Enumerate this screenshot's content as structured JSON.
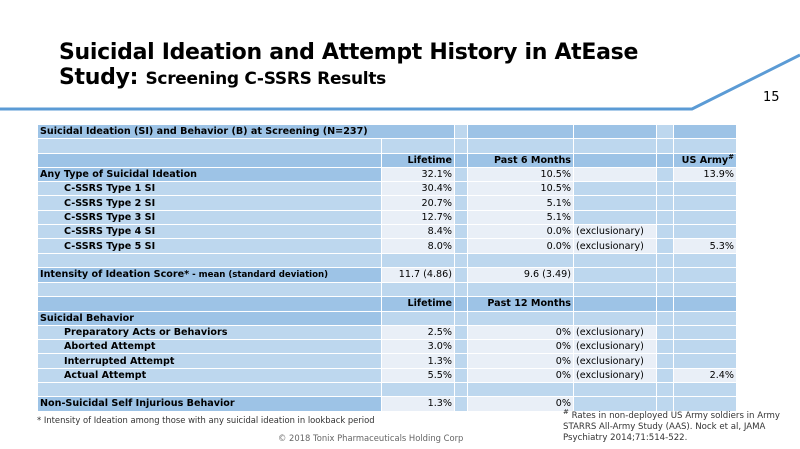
{
  "slide": {
    "title_main": "Suicidal Ideation and Attempt History in AtEase",
    "title_line2_bold": "Study:",
    "title_line2_sub": "Screening C-SSRS Results",
    "page_number": "15",
    "accent_color": "#5b9bd5"
  },
  "table": {
    "caption": "Suicidal Ideation (SI) and Behavior (B) at Screening (N=237)",
    "section1_headers": {
      "lifetime": "Lifetime",
      "past": "Past 6 Months",
      "army": "US Army",
      "army_mark": "#"
    },
    "ideation_rows": [
      {
        "label": "Any Type of Suicidal Ideation",
        "lifetime": "32.1%",
        "past": "10.5%",
        "note": "",
        "army": "13.9%"
      },
      {
        "label": "C-SSRS Type 1 SI",
        "lifetime": "30.4%",
        "past": "10.5%",
        "note": "",
        "army": ""
      },
      {
        "label": "C-SSRS Type 2 SI",
        "lifetime": "20.7%",
        "past": "5.1%",
        "note": "",
        "army": ""
      },
      {
        "label": "C-SSRS Type 3 SI",
        "lifetime": "12.7%",
        "past": "5.1%",
        "note": "",
        "army": ""
      },
      {
        "label": "C-SSRS Type 4 SI",
        "lifetime": "8.4%",
        "past": "0.0%",
        "note": "(exclusionary)",
        "army": ""
      },
      {
        "label": "C-SSRS Type 5 SI",
        "lifetime": "8.0%",
        "past": "0.0%",
        "note": "(exclusionary)",
        "army": "5.3%"
      }
    ],
    "intensity": {
      "label": "Intensity of Ideation Score*",
      "label_small": " - mean (standard deviation)",
      "lifetime": "11.7 (4.86)",
      "past": "9.6 (3.49)"
    },
    "section2_headers": {
      "lifetime": "Lifetime",
      "past": "Past 12 Months"
    },
    "behavior_title": "Suicidal Behavior",
    "behavior_rows": [
      {
        "label": "Preparatory Acts or Behaviors",
        "lifetime": "2.5%",
        "past": "0%",
        "note": "(exclusionary)",
        "army": ""
      },
      {
        "label": "Aborted Attempt",
        "lifetime": "3.0%",
        "past": "0%",
        "note": "(exclusionary)",
        "army": ""
      },
      {
        "label": "Interrupted Attempt",
        "lifetime": "1.3%",
        "past": "0%",
        "note": "(exclusionary)",
        "army": ""
      },
      {
        "label": "Actual Attempt",
        "lifetime": "5.5%",
        "past": "0%",
        "note": "(exclusionary)",
        "army": "2.4%"
      }
    ],
    "nssi": {
      "label": "Non-Suicidal Self Injurious Behavior",
      "lifetime": "1.3%",
      "past": "0%"
    }
  },
  "footnotes": {
    "intensity_note": "* Intensity of Ideation among those with any suicidal ideation in lookback period",
    "army_mark": "#",
    "army_note": " Rates in non-deployed US Army soldiers in Army STARRS All-Army Study (AAS). Nock et al, JAMA Psychiatry 2014;71:514-522.",
    "copyright": "© 2018 Tonix Pharmaceuticals Holding Corp"
  }
}
